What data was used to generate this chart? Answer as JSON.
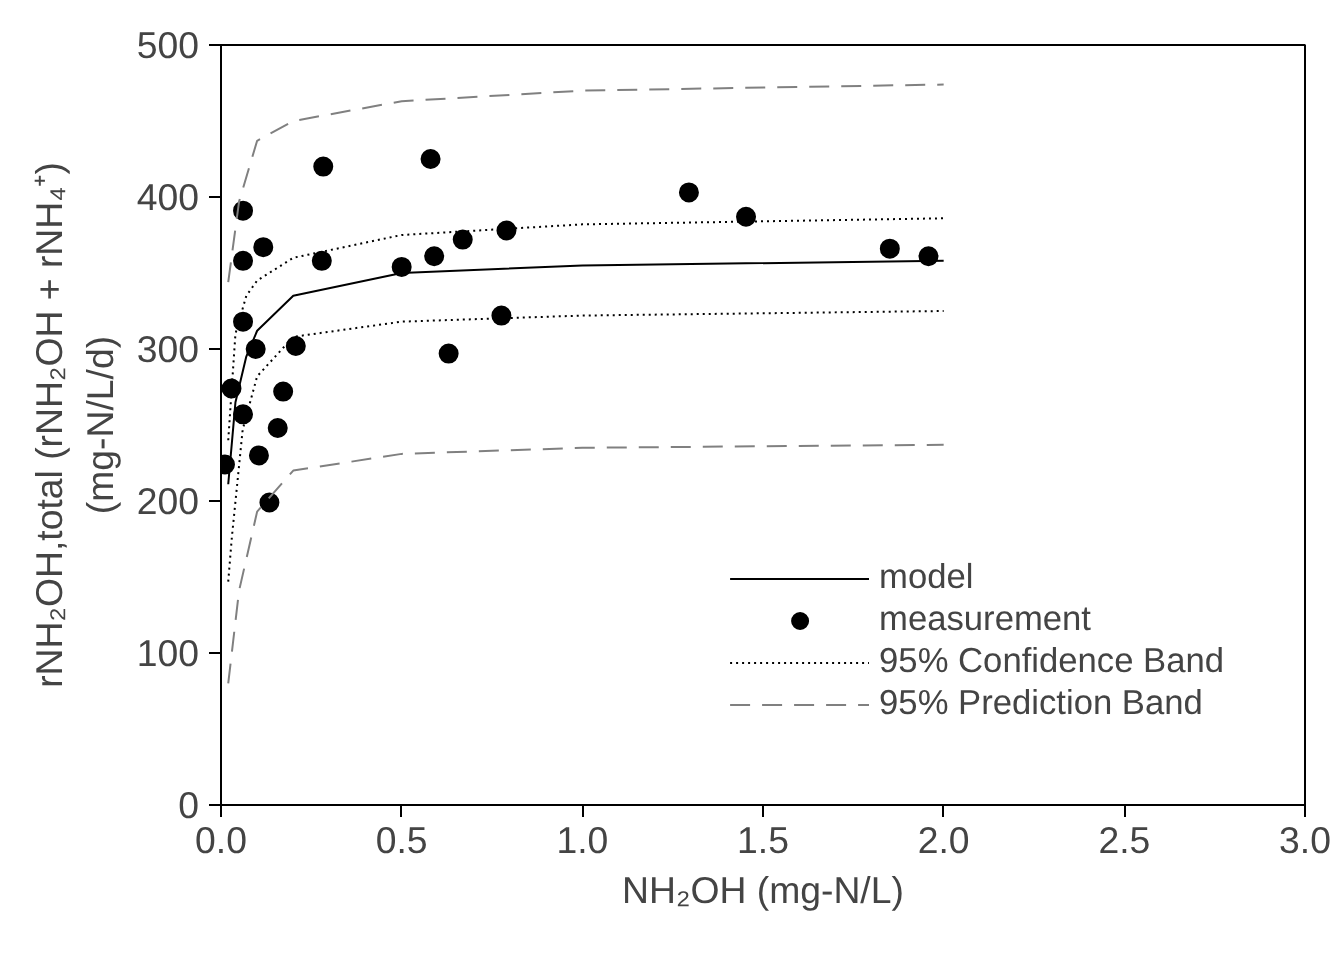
{
  "chart_data": {
    "type": "line",
    "xlabel": "NH₂OH (mg-N/L)",
    "ylabel": "rNH₂OH,total (rNH₂OH + rNH₄⁺)\n(mg-N/L/d)",
    "xlim": [
      0,
      3
    ],
    "ylim": [
      0,
      500
    ],
    "xticks": [
      {
        "value": 0,
        "label": "0.0"
      },
      {
        "value": 0.5,
        "label": "0.5"
      },
      {
        "value": 1,
        "label": "1.0"
      },
      {
        "value": 1.5,
        "label": "1.5"
      },
      {
        "value": 2,
        "label": "2.0"
      },
      {
        "value": 2.5,
        "label": "2.5"
      },
      {
        "value": 3,
        "label": "3.0"
      }
    ],
    "yticks": [
      0,
      100,
      200,
      300,
      400,
      500
    ],
    "grid": false,
    "legend": "bottom right",
    "series": [
      {
        "name": "model",
        "line_style": "solid",
        "color": "#000000",
        "x": [
          0.02,
          0.04,
          0.07,
          0.1,
          0.2,
          0.5,
          1,
          2
        ],
        "values": [
          211,
          265,
          295,
          312,
          335,
          350,
          355,
          358
        ]
      },
      {
        "name": "measurement",
        "type": "scatter",
        "marker": "circle",
        "color": "#000000",
        "x": [
          0.011,
          0.029,
          0.061,
          0.061,
          0.061,
          0.061,
          0.096,
          0.117,
          0.105,
          0.134,
          0.157,
          0.172,
          0.207,
          0.283,
          0.279,
          0.5,
          0.58,
          0.59,
          0.63,
          0.669,
          0.79,
          0.776,
          1.295,
          1.453,
          1.851,
          1.958
        ],
        "values": [
          224,
          274,
          391,
          358,
          318,
          257,
          300,
          367,
          230,
          199,
          248,
          272,
          302,
          420,
          358,
          354,
          425,
          361,
          297,
          372,
          378,
          322,
          403,
          387,
          366,
          361
        ]
      },
      {
        "name": "95% Confidence Band",
        "line_style": "dotted",
        "color": "#000000",
        "x": [
          0.02,
          0.04,
          0.07,
          0.1,
          0.2,
          0.5,
          1,
          2
        ],
        "values": [
          240,
          310,
          335,
          345,
          360,
          375,
          382,
          386
        ]
      },
      {
        "line_style": "dotted",
        "color": "#000000",
        "x": [
          0.02,
          0.03,
          0.06,
          0.1,
          0.2,
          0.5,
          1,
          2
        ],
        "values": [
          147,
          176,
          247,
          282,
          308,
          318,
          322,
          325
        ]
      },
      {
        "name": "95% Prediction Band",
        "line_style": "dashed",
        "color": "#808080",
        "x": [
          0.02,
          0.05,
          0.1,
          0.2,
          0.5,
          1,
          2
        ],
        "values": [
          344,
          397,
          437,
          450,
          463,
          470,
          474
        ]
      },
      {
        "line_style": "dashed",
        "color": "#808080",
        "x": [
          0.02,
          0.05,
          0.1,
          0.2,
          0.5,
          1,
          2
        ],
        "values": [
          80,
          141,
          193,
          220,
          231,
          235,
          237
        ]
      }
    ]
  }
}
